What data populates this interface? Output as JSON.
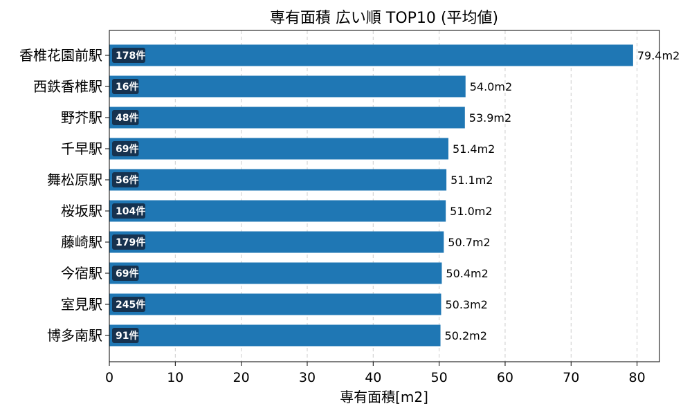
{
  "chart_data": {
    "type": "bar",
    "orientation": "horizontal",
    "title": "専有面積 広い順 TOP10 (平均値)",
    "xlabel": "専有面積[m2]",
    "ylabel": "",
    "xlim": [
      0,
      83.4
    ],
    "xticks": [
      0,
      10,
      20,
      30,
      40,
      50,
      60,
      70,
      80
    ],
    "grid": "x-dashed",
    "bar_color": "#1f77b4",
    "badge_color": "#16324f",
    "categories": [
      "香椎花園前駅",
      "西鉄香椎駅",
      "野芥駅",
      "千早駅",
      "舞松原駅",
      "桜坂駅",
      "藤崎駅",
      "今宿駅",
      "室見駅",
      "博多南駅"
    ],
    "values": [
      79.4,
      54.0,
      53.9,
      51.4,
      51.1,
      51.0,
      50.7,
      50.4,
      50.3,
      50.2
    ],
    "value_labels": [
      "79.4m2",
      "54.0m2",
      "53.9m2",
      "51.4m2",
      "51.1m2",
      "51.0m2",
      "50.7m2",
      "50.4m2",
      "50.3m2",
      "50.2m2"
    ],
    "counts": [
      "178件",
      "16件",
      "48件",
      "69件",
      "56件",
      "104件",
      "179件",
      "69件",
      "245件",
      "91件"
    ]
  }
}
